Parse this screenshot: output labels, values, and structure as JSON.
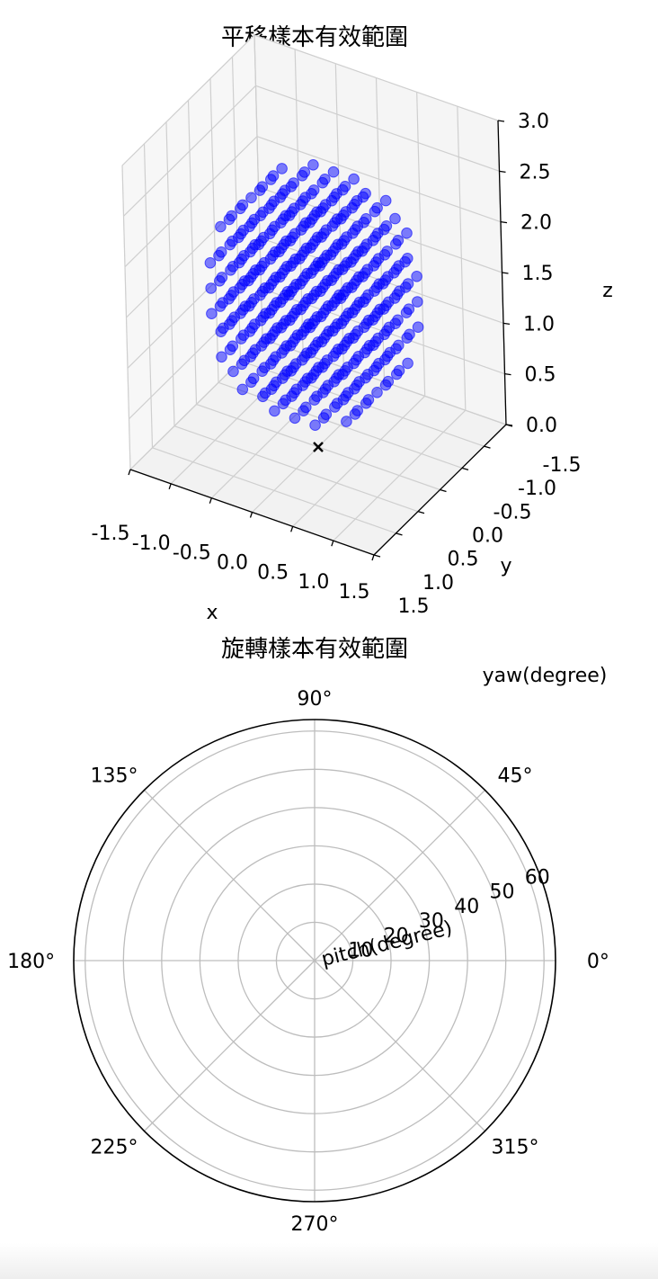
{
  "chart_data": [
    {
      "type": "scatter3d",
      "title": "平移樣本有效範圍",
      "xlabel": "x",
      "ylabel": "y",
      "zlabel": "z",
      "xlim": [
        -1.5,
        1.5
      ],
      "ylim": [
        -1.5,
        1.5
      ],
      "zlim": [
        0.0,
        3.0
      ],
      "x_ticks": [
        "-1.5",
        "-1.0",
        "-0.5",
        "0.0",
        "0.5",
        "1.0",
        "1.5"
      ],
      "y_ticks": [
        "-1.5",
        "-1.0",
        "-0.5",
        "0.0",
        "0.5",
        "1.0",
        "1.5"
      ],
      "z_ticks": [
        "0.0",
        "0.5",
        "1.0",
        "1.5",
        "2.0",
        "2.5",
        "3.0"
      ],
      "grid": true,
      "point_color": "#0000ff",
      "point_alpha": 0.5,
      "sample_grid": {
        "axis_values": [
          -1.0,
          -0.75,
          -0.5,
          -0.25,
          0.0,
          0.25,
          0.5,
          0.75,
          1.0
        ],
        "z_values": [
          0.25,
          0.5,
          0.75,
          1.0,
          1.25,
          1.5,
          1.75,
          2.0,
          2.25,
          2.5,
          2.75
        ],
        "region": "sphere",
        "center": [
          0,
          0,
          1.5
        ],
        "radius": 1.2
      },
      "origin_marker": {
        "x": 0,
        "y": 0,
        "z": 0,
        "symbol": "x",
        "color": "#000000"
      }
    },
    {
      "type": "polar",
      "title": "旋轉樣本有效範圍",
      "theta_label": "yaw(degree)",
      "r_label": "pitch(degree)",
      "theta_ticks": [
        "0°",
        "45°",
        "90°",
        "135°",
        "180°",
        "225°",
        "270°",
        "315°"
      ],
      "theta_tick_values": [
        0,
        45,
        90,
        135,
        180,
        225,
        270,
        315
      ],
      "r_ticks": [
        "10",
        "20",
        "30",
        "40",
        "50",
        "60"
      ],
      "r_tick_values": [
        10,
        20,
        30,
        40,
        50,
        60
      ],
      "rlim": [
        0,
        63
      ],
      "grid": true,
      "series": []
    }
  ]
}
